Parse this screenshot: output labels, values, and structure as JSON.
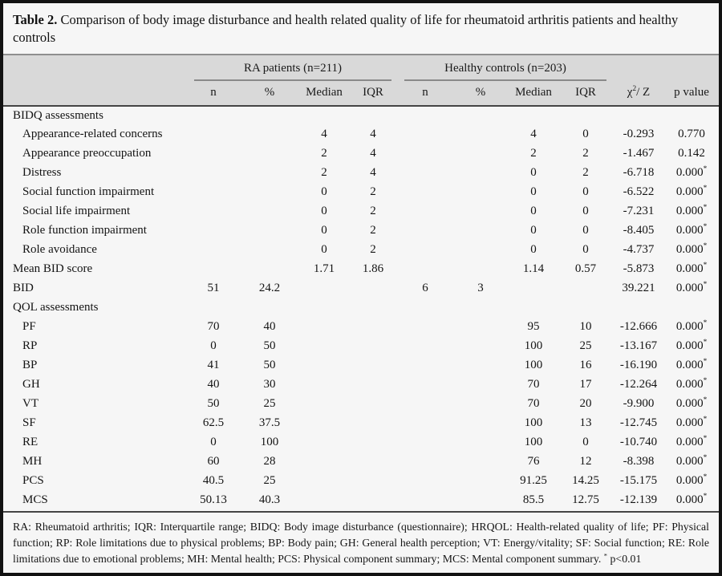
{
  "title": {
    "label": "Table 2.",
    "text": " Comparison of body image disturbance and health related quality of life for rheumatoid arthritis patients and healthy controls"
  },
  "header": {
    "groups": [
      {
        "label": "RA patients (n=211)"
      },
      {
        "label": "Healthy controls (n=203)"
      }
    ],
    "subcols": [
      "n",
      "%",
      "Median",
      "IQR",
      "n",
      "%",
      "Median",
      "IQR"
    ],
    "chi_base": "χ",
    "chi_sup": "2",
    "chi_rest": "/ Z",
    "p_value": "p value"
  },
  "table": {
    "col_keys": [
      "ra-n",
      "ra-pct",
      "ra-median",
      "ra-iqr",
      "hc-n",
      "hc-pct",
      "hc-median",
      "hc-iqr",
      "chi-z",
      "p-value"
    ],
    "rows": [
      {
        "label": "BIDQ assessments",
        "section": true
      },
      {
        "label": "Appearance-related concerns",
        "indent": true,
        "cells": [
          "",
          "",
          "4",
          "4",
          "",
          "",
          "4",
          "0",
          "-0.293",
          "0.770"
        ]
      },
      {
        "label": "Appearance preoccupation",
        "indent": true,
        "cells": [
          "",
          "",
          "2",
          "4",
          "",
          "",
          "2",
          "2",
          "-1.467",
          "0.142"
        ]
      },
      {
        "label": "Distress",
        "indent": true,
        "cells": [
          "",
          "",
          "2",
          "4",
          "",
          "",
          "0",
          "2",
          "-6.718",
          "0.000*"
        ]
      },
      {
        "label": "Social function impairment",
        "indent": true,
        "cells": [
          "",
          "",
          "0",
          "2",
          "",
          "",
          "0",
          "0",
          "-6.522",
          "0.000*"
        ]
      },
      {
        "label": "Social life impairment",
        "indent": true,
        "cells": [
          "",
          "",
          "0",
          "2",
          "",
          "",
          "0",
          "0",
          "-7.231",
          "0.000*"
        ]
      },
      {
        "label": "Role function impairment",
        "indent": true,
        "cells": [
          "",
          "",
          "0",
          "2",
          "",
          "",
          "0",
          "0",
          "-8.405",
          "0.000*"
        ]
      },
      {
        "label": "Role avoidance",
        "indent": true,
        "cells": [
          "",
          "",
          "0",
          "2",
          "",
          "",
          "0",
          "0",
          "-4.737",
          "0.000*"
        ]
      },
      {
        "label": "Mean BID score",
        "cells": [
          "",
          "",
          "1.71",
          "1.86",
          "",
          "",
          "1.14",
          "0.57",
          "-5.873",
          "0.000*"
        ]
      },
      {
        "label": "BID",
        "cells": [
          "51",
          "24.2",
          "",
          "",
          "6",
          "3",
          "",
          "",
          "39.221",
          "0.000*"
        ]
      },
      {
        "label": "QOL assessments",
        "section": true
      },
      {
        "label": "PF",
        "indent": true,
        "cells": [
          "70",
          "40",
          "",
          "",
          "",
          "",
          "95",
          "10",
          "-12.666",
          "0.000*"
        ]
      },
      {
        "label": "RP",
        "indent": true,
        "cells": [
          "0",
          "50",
          "",
          "",
          "",
          "",
          "100",
          "25",
          "-13.167",
          "0.000*"
        ]
      },
      {
        "label": "BP",
        "indent": true,
        "cells": [
          "41",
          "50",
          "",
          "",
          "",
          "",
          "100",
          "16",
          "-16.190",
          "0.000*"
        ]
      },
      {
        "label": "GH",
        "indent": true,
        "cells": [
          "40",
          "30",
          "",
          "",
          "",
          "",
          "70",
          "17",
          "-12.264",
          "0.000*"
        ]
      },
      {
        "label": "VT",
        "indent": true,
        "cells": [
          "50",
          "25",
          "",
          "",
          "",
          "",
          "70",
          "20",
          "-9.900",
          "0.000*"
        ]
      },
      {
        "label": "SF",
        "indent": true,
        "cells": [
          "62.5",
          "37.5",
          "",
          "",
          "",
          "",
          "100",
          "13",
          "-12.745",
          "0.000*"
        ]
      },
      {
        "label": "RE",
        "indent": true,
        "cells": [
          "0",
          "100",
          "",
          "",
          "",
          "",
          "100",
          "0",
          "-10.740",
          "0.000*"
        ]
      },
      {
        "label": "MH",
        "indent": true,
        "cells": [
          "60",
          "28",
          "",
          "",
          "",
          "",
          "76",
          "12",
          "-8.398",
          "0.000*"
        ]
      },
      {
        "label": "PCS",
        "indent": true,
        "cells": [
          "40.5",
          "25",
          "",
          "",
          "",
          "",
          "91.25",
          "14.25",
          "-15.175",
          "0.000*"
        ]
      },
      {
        "label": "MCS",
        "indent": true,
        "cells": [
          "50.13",
          "40.3",
          "",
          "",
          "",
          "",
          "85.5",
          "12.75",
          "-12.139",
          "0.000*"
        ]
      }
    ]
  },
  "footnote": {
    "text": "RA: Rheumatoid arthritis; IQR: Interquartile range; BIDQ: Body image disturbance (questionnaire); HRQOL: Health-related quality of life; PF: Physical function; RP: Role limitations due to physical problems; BP: Body pain; GH: General health perception; VT: Energy/vitality; SF: Social function; RE: Role limitations due to emotional problems; MH: Mental health; PCS: Physical component summary; MCS: Mental component summary. ",
    "star": "*",
    "tail": " p<0.01"
  },
  "colors": {
    "header_bg": "#d9d9d9",
    "page_bg": "#f6f6f6",
    "frame": "#121212",
    "rule_dark": "#454545",
    "rule_gray": "#8f8f8f"
  }
}
